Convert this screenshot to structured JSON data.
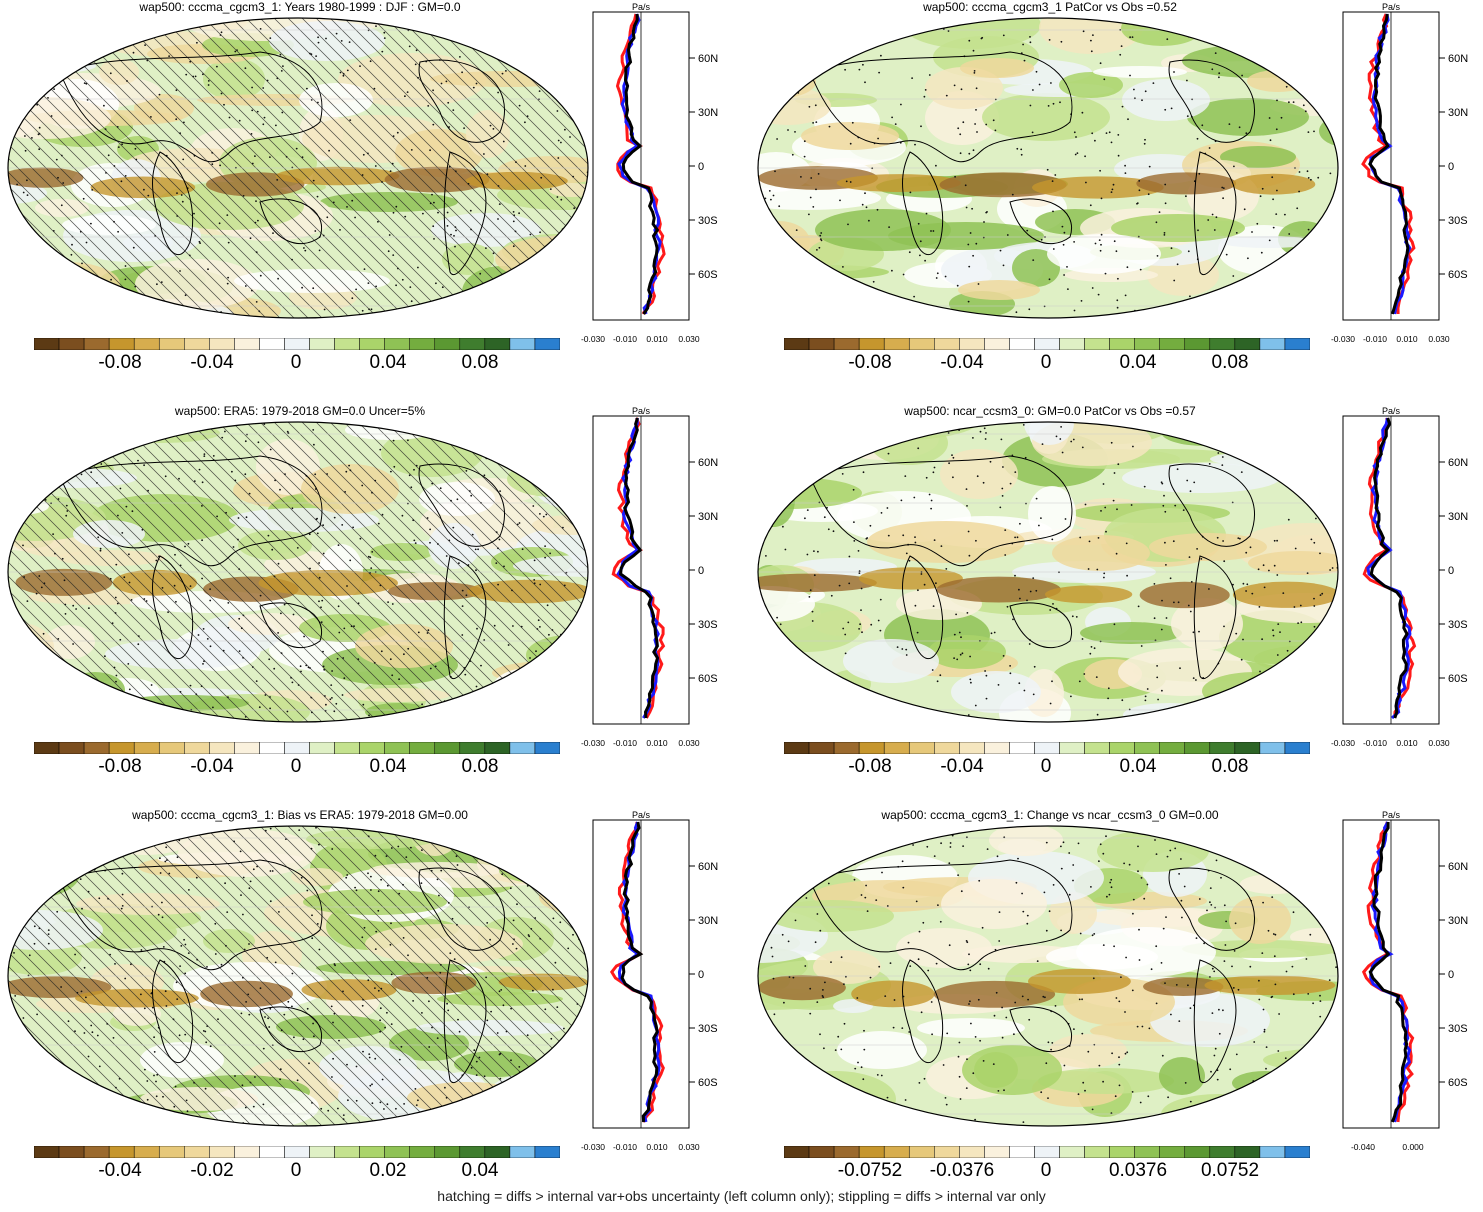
{
  "colorbar_colors": [
    "#5c3a14",
    "#7b4e1f",
    "#9b6a2e",
    "#c6962d",
    "#d7ad4e",
    "#e6c87a",
    "#efd89c",
    "#f5e6bf",
    "#faf1dd",
    "#ffffff",
    "#eef3f7",
    "#dff0c5",
    "#c4e28e",
    "#aad46a",
    "#8fc255",
    "#74ad3f",
    "#5b9832",
    "#3f7d2e",
    "#2d6426",
    "#7fc0ea",
    "#2a7fcf"
  ],
  "hatching_note": "hatching = diffs > internal var+obs uncertainty (left column only); stippling = diffs > internal var only",
  "panels": [
    {
      "id": "p1",
      "title": "wap500: cccma_cgcm3_1: Years 1980-1999 : DJF : GM=0.0",
      "colorbar_ticks": [
        "-0.08",
        "-0.04",
        "0",
        "0.04",
        "0.08"
      ],
      "zonal_unit": "Pa/s",
      "zonal_xticks": [
        "-0.030",
        "-0.010",
        "0.010",
        "0.030"
      ],
      "zonal_yticks": [
        "60N",
        "30N",
        "0",
        "30S",
        "60S"
      ],
      "hatch": true
    },
    {
      "id": "p2",
      "title": "wap500: cccma_cgcm3_1 PatCor vs Obs =0.52",
      "colorbar_ticks": [
        "-0.08",
        "-0.04",
        "0",
        "0.04",
        "0.08"
      ],
      "zonal_unit": "Pa/s",
      "zonal_xticks": [
        "-0.030",
        "-0.010",
        "0.010",
        "0.030"
      ],
      "zonal_yticks": [
        "60N",
        "30N",
        "0",
        "30S",
        "60S"
      ],
      "hatch": false
    },
    {
      "id": "p3",
      "title": "wap500: ERA5: 1979-2018 GM=0.0 Uncer=5%",
      "colorbar_ticks": [
        "-0.08",
        "-0.04",
        "0",
        "0.04",
        "0.08"
      ],
      "zonal_unit": "Pa/s",
      "zonal_xticks": [
        "-0.030",
        "-0.010",
        "0.010",
        "0.030"
      ],
      "zonal_yticks": [
        "60N",
        "30N",
        "0",
        "30S",
        "60S"
      ],
      "hatch": true
    },
    {
      "id": "p4",
      "title": "wap500: ncar_ccsm3_0: GM=0.0 PatCor vs Obs =0.57",
      "colorbar_ticks": [
        "-0.08",
        "-0.04",
        "0",
        "0.04",
        "0.08"
      ],
      "zonal_unit": "Pa/s",
      "zonal_xticks": [
        "-0.030",
        "-0.010",
        "0.010",
        "0.030"
      ],
      "zonal_yticks": [
        "60N",
        "30N",
        "0",
        "30S",
        "60S"
      ],
      "hatch": false
    },
    {
      "id": "p5",
      "title": "wap500: cccma_cgcm3_1: Bias vs ERA5: 1979-2018 GM=0.00",
      "colorbar_ticks": [
        "-0.04",
        "-0.02",
        "0",
        "0.02",
        "0.04"
      ],
      "zonal_unit": "Pa/s",
      "zonal_xticks": [
        "-0.030",
        "-0.010",
        "0.010",
        "0.030"
      ],
      "zonal_yticks": [
        "60N",
        "30N",
        "0",
        "30S",
        "60S"
      ],
      "hatch": true
    },
    {
      "id": "p6",
      "title": "wap500: cccma_cgcm3_1: Change vs ncar_ccsm3_0 GM=0.00",
      "colorbar_ticks": [
        "-0.0752",
        "-0.0376",
        "0",
        "0.0376",
        "0.0752"
      ],
      "zonal_unit": "Pa/s",
      "zonal_xticks": [
        "-0.040",
        "0.000"
      ],
      "zonal_yticks": [
        "60N",
        "30N",
        "0",
        "30S",
        "60S"
      ],
      "hatch": false
    }
  ]
}
